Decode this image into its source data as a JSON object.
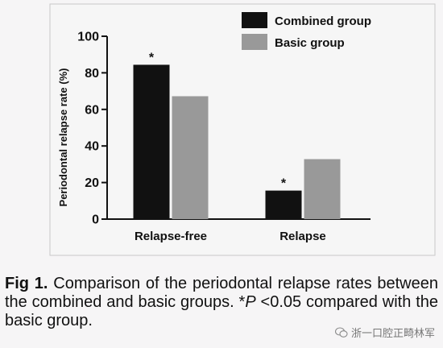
{
  "chart_data": {
    "type": "bar",
    "title": "",
    "xlabel": "",
    "ylabel": "Periodontal relapse rate (%)",
    "ylim": [
      0,
      100
    ],
    "yticks": [
      0,
      20,
      40,
      60,
      80,
      100
    ],
    "categories": [
      "Relapse-free",
      "Relapse"
    ],
    "series": [
      {
        "name": "Combined group",
        "values": [
          84.4,
          15.6
        ],
        "color": "#111111"
      },
      {
        "name": "Basic group",
        "values": [
          67.2,
          32.8
        ],
        "color": "#999999"
      }
    ],
    "annotations": [
      {
        "category": "Relapse-free",
        "series": "Combined group",
        "text": "*"
      },
      {
        "category": "Relapse",
        "series": "Combined group",
        "text": "*"
      }
    ],
    "legend": "top-right",
    "grid": false
  },
  "caption": {
    "label": "Fig 1.",
    "text_before_p": "Comparison of the periodontal relapse rates between the combined and basic groups. *",
    "p_symbol": "P",
    "text_after_p": " <0.05 compared with the basic group."
  },
  "watermark": {
    "text": "浙一口腔正畸林军",
    "icon": "wechat-icon"
  }
}
